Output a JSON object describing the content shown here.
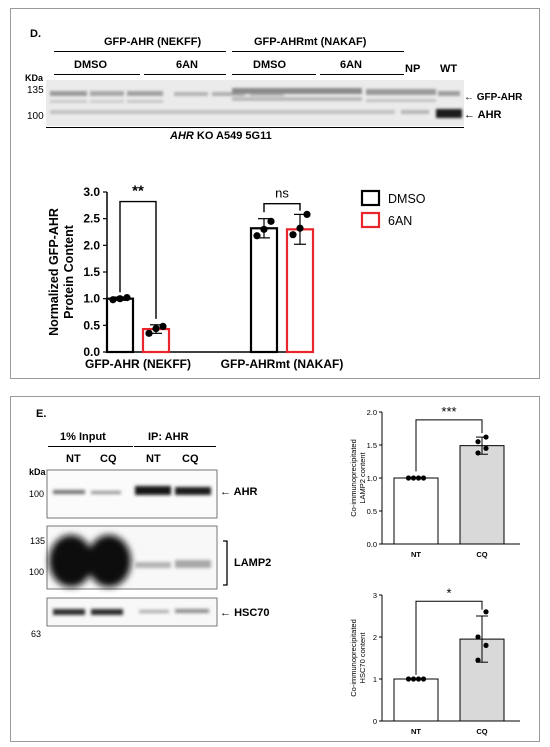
{
  "panelD": {
    "letter": "D.",
    "group_labels": [
      "GFP-AHR (NEKFF)",
      "GFP-AHRmt (NAKAF)"
    ],
    "treatment_labels": [
      "DMSO",
      "6AN",
      "DMSO",
      "6AN"
    ],
    "np_label": "NP",
    "wt_label": "WT",
    "kda_label": "KDa",
    "mw_markers": [
      "135",
      "100"
    ],
    "band_labels": [
      "GFP-AHR",
      "AHR"
    ],
    "caption_italic": "AHR",
    "caption_rest": " KO A549 5G11"
  },
  "panelE": {
    "letter": "E.",
    "input_label": "1% Input",
    "ip_label": "IP: AHR",
    "lane_labels": [
      "NT",
      "CQ",
      "NT",
      "CQ"
    ],
    "kda_label": "kDa",
    "blot1_markers": [
      "100"
    ],
    "blot2_markers": [
      "135",
      "100"
    ],
    "blot3_markers": [
      "63"
    ],
    "blot_labels": [
      "AHR",
      "LAMP2",
      "HSC70"
    ]
  },
  "chart_data": [
    {
      "type": "bar",
      "categories": [
        "GFP-AHR (NEKFF)",
        "GFP-AHRmt (NAKAF)"
      ],
      "ylabel": "Normalized GFP-AHR Protein Content",
      "ylim": [
        0,
        3.0
      ],
      "yticks": [
        "0.0",
        "0.5",
        "1.0",
        "1.5",
        "2.0",
        "2.5",
        "3.0"
      ],
      "series": [
        {
          "name": "DMSO",
          "values": [
            1.0,
            2.32
          ],
          "errors": [
            0.03,
            0.18
          ],
          "points": [
            [
              0.98,
              1.0,
              1.02
            ],
            [
              2.18,
              2.3,
              2.45
            ]
          ],
          "color": "#000000"
        },
        {
          "name": "6AN",
          "values": [
            0.43,
            2.3
          ],
          "errors": [
            0.08,
            0.28
          ],
          "points": [
            [
              0.35,
              0.44,
              0.48
            ],
            [
              2.2,
              2.32,
              2.58
            ]
          ],
          "color": "#e8262b"
        }
      ],
      "significance": [
        "**",
        "ns"
      ],
      "legend_position": "right"
    },
    {
      "type": "bar",
      "categories": [
        "NT",
        "CQ"
      ],
      "ylabel": "Co-immunoprecipitated LAMP2 content",
      "ylim": [
        0,
        2.0
      ],
      "yticks": [
        "0.0",
        "0.5",
        "1.0",
        "1.5",
        "2.0"
      ],
      "values": [
        1.0,
        1.49
      ],
      "errors": [
        0.0,
        0.13
      ],
      "points": [
        [
          1.0,
          1.0,
          1.0,
          1.0
        ],
        [
          1.38,
          1.45,
          1.55,
          1.62
        ]
      ],
      "colors": [
        "#ffffff",
        "#d9d9d9"
      ],
      "significance": "***"
    },
    {
      "type": "bar",
      "categories": [
        "NT",
        "CQ"
      ],
      "ylabel": "Co-immunoprecipitated HSC70 content",
      "ylim": [
        0,
        3
      ],
      "yticks": [
        "0",
        "1",
        "2",
        "3"
      ],
      "values": [
        1.0,
        1.95
      ],
      "errors": [
        0.0,
        0.55
      ],
      "points": [
        [
          1.0,
          1.0,
          1.0,
          1.0
        ],
        [
          1.45,
          1.8,
          2.0,
          2.6
        ]
      ],
      "colors": [
        "#ffffff",
        "#d9d9d9"
      ],
      "significance": "*"
    }
  ]
}
